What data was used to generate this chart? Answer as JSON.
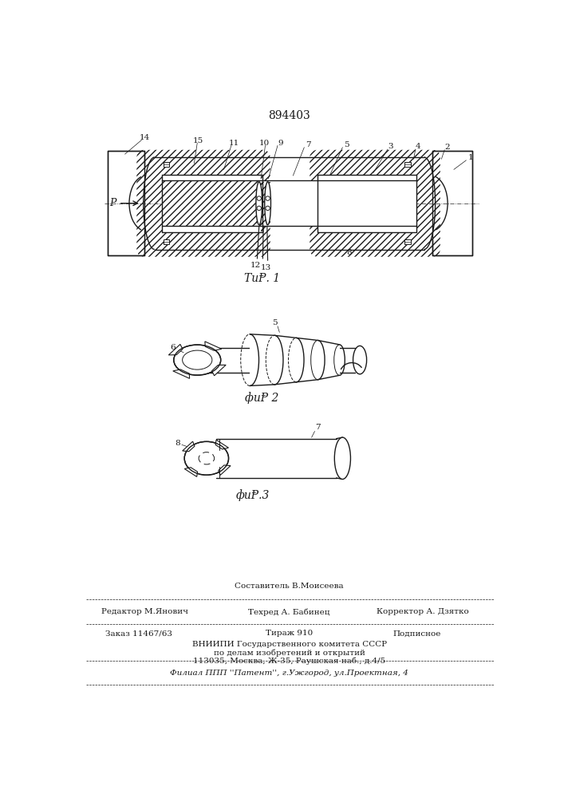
{
  "patent_number": "894403",
  "fig1_caption": "ΤиⱣ. 1",
  "fig2_caption": "фиⱣ 2",
  "fig3_caption": "фиⱣ.3",
  "footer_line1": "Составитель В.Моисеева",
  "footer_line2_left": "Редактор М.Янович",
  "footer_line2_mid": "Техред А. Бабинец",
  "footer_line2_right": "Корректор А. Дзятко",
  "footer_line3_left": "Заказ 11467/63",
  "footer_line3_mid": "Тираж 910",
  "footer_line3_right": "Подписное",
  "footer_line4": "ВНИИПИ Государственного комитета СССР",
  "footer_line5": "по делам изобретений и открытий",
  "footer_line6": "113035, Москва, Ж-35, Раушская наб., д.4/5",
  "footer_line7": "Филиал ППП ''Патент'', г.Ужгород, ул.Проектная, 4",
  "bg_color": "#ffffff",
  "line_color": "#1a1a1a"
}
